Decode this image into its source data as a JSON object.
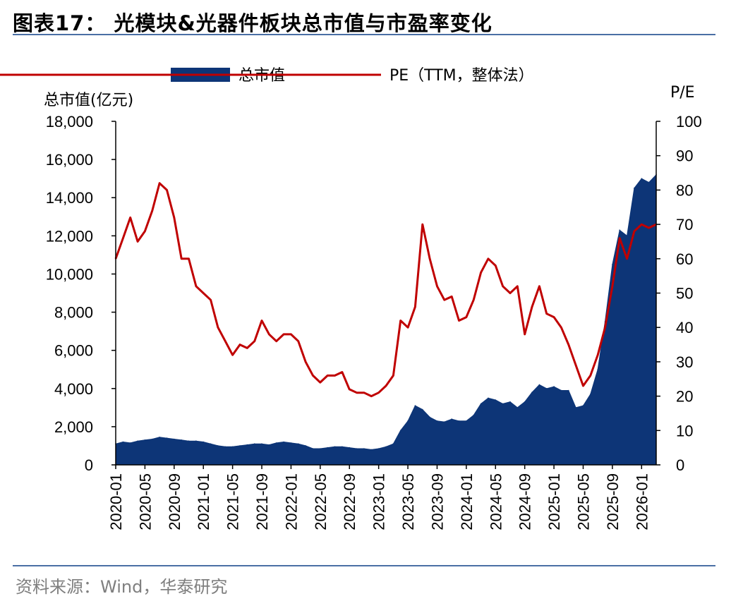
{
  "title": "图表17：  光模块&光器件板块总市值与市盈率变化",
  "source": "资料来源：Wind，华泰研究",
  "colors": {
    "area": "#0d3577",
    "line": "#c00000",
    "rule": "#4a6fa5"
  },
  "chart_data": {
    "type": "area",
    "title": "",
    "legend": {
      "placement": "top",
      "entries": [
        "总市值",
        "PE（TTM，整体法）"
      ]
    },
    "y_left": {
      "label": "总市值(亿元)",
      "range": [
        0,
        18000
      ],
      "ticks": [
        "0",
        "2,000",
        "4,000",
        "6,000",
        "8,000",
        "10,000",
        "12,000",
        "14,000",
        "16,000",
        "18,000"
      ]
    },
    "y_right": {
      "label": "P/E",
      "range": [
        0,
        100
      ],
      "ticks": [
        "0",
        "10",
        "20",
        "30",
        "40",
        "50",
        "60",
        "70",
        "80",
        "90",
        "100"
      ]
    },
    "x": {
      "range": [
        "2020-01",
        "2026-03"
      ],
      "tick_labels": [
        "2020-01",
        "2020-05",
        "2020-09",
        "2021-01",
        "2021-05",
        "2021-09",
        "2022-01",
        "2022-05",
        "2022-09",
        "2023-01",
        "2023-05",
        "2023-09",
        "2024-01",
        "2024-05",
        "2024-09",
        "2025-01",
        "2025-05",
        "2025-09",
        "2026-01"
      ]
    },
    "grid": false,
    "series": [
      {
        "name": "总市值",
        "type": "area",
        "axis": "left",
        "points": [
          [
            "2020-01",
            1100
          ],
          [
            "2020-02",
            1200
          ],
          [
            "2020-03",
            1150
          ],
          [
            "2020-04",
            1250
          ],
          [
            "2020-05",
            1300
          ],
          [
            "2020-06",
            1350
          ],
          [
            "2020-07",
            1450
          ],
          [
            "2020-08",
            1400
          ],
          [
            "2020-09",
            1350
          ],
          [
            "2020-10",
            1300
          ],
          [
            "2020-11",
            1250
          ],
          [
            "2020-12",
            1250
          ],
          [
            "2021-01",
            1200
          ],
          [
            "2021-02",
            1100
          ],
          [
            "2021-03",
            1000
          ],
          [
            "2021-04",
            950
          ],
          [
            "2021-05",
            950
          ],
          [
            "2021-06",
            1000
          ],
          [
            "2021-07",
            1050
          ],
          [
            "2021-08",
            1100
          ],
          [
            "2021-09",
            1100
          ],
          [
            "2021-10",
            1050
          ],
          [
            "2021-11",
            1150
          ],
          [
            "2021-12",
            1200
          ],
          [
            "2022-01",
            1150
          ],
          [
            "2022-02",
            1100
          ],
          [
            "2022-03",
            1000
          ],
          [
            "2022-04",
            850
          ],
          [
            "2022-05",
            850
          ],
          [
            "2022-06",
            900
          ],
          [
            "2022-07",
            950
          ],
          [
            "2022-08",
            950
          ],
          [
            "2022-09",
            900
          ],
          [
            "2022-10",
            850
          ],
          [
            "2022-11",
            850
          ],
          [
            "2022-12",
            800
          ],
          [
            "2023-01",
            850
          ],
          [
            "2023-02",
            950
          ],
          [
            "2023-03",
            1100
          ],
          [
            "2023-04",
            1800
          ],
          [
            "2023-05",
            2300
          ],
          [
            "2023-06",
            3100
          ],
          [
            "2023-07",
            2900
          ],
          [
            "2023-08",
            2500
          ],
          [
            "2023-09",
            2300
          ],
          [
            "2023-10",
            2250
          ],
          [
            "2023-11",
            2400
          ],
          [
            "2023-12",
            2300
          ],
          [
            "2024-01",
            2300
          ],
          [
            "2024-02",
            2600
          ],
          [
            "2024-03",
            3200
          ],
          [
            "2024-04",
            3500
          ],
          [
            "2024-05",
            3400
          ],
          [
            "2024-06",
            3200
          ],
          [
            "2024-07",
            3300
          ],
          [
            "2024-08",
            3000
          ],
          [
            "2024-09",
            3300
          ],
          [
            "2024-10",
            3800
          ],
          [
            "2024-11",
            4200
          ],
          [
            "2024-12",
            4000
          ],
          [
            "2025-01",
            4100
          ],
          [
            "2025-02",
            3900
          ],
          [
            "2025-03",
            3900
          ],
          [
            "2025-04",
            3000
          ],
          [
            "2025-05",
            3100
          ],
          [
            "2025-06",
            3700
          ],
          [
            "2025-07",
            5000
          ],
          [
            "2025-08",
            7500
          ],
          [
            "2025-09",
            10500
          ],
          [
            "2025-10",
            12300
          ],
          [
            "2025-11",
            12000
          ],
          [
            "2025-12",
            14500
          ],
          [
            "2026-01",
            15000
          ],
          [
            "2026-02",
            14800
          ],
          [
            "2026-03",
            15200
          ]
        ]
      },
      {
        "name": "PE（TTM，整体法）",
        "type": "line",
        "axis": "right",
        "points": [
          [
            "2020-01",
            60
          ],
          [
            "2020-02",
            66
          ],
          [
            "2020-03",
            72
          ],
          [
            "2020-04",
            65
          ],
          [
            "2020-05",
            68
          ],
          [
            "2020-06",
            74
          ],
          [
            "2020-07",
            82
          ],
          [
            "2020-08",
            80
          ],
          [
            "2020-09",
            72
          ],
          [
            "2020-10",
            60
          ],
          [
            "2020-11",
            60
          ],
          [
            "2020-12",
            52
          ],
          [
            "2021-01",
            50
          ],
          [
            "2021-02",
            48
          ],
          [
            "2021-03",
            40
          ],
          [
            "2021-04",
            36
          ],
          [
            "2021-05",
            32
          ],
          [
            "2021-06",
            35
          ],
          [
            "2021-07",
            34
          ],
          [
            "2021-08",
            36
          ],
          [
            "2021-09",
            42
          ],
          [
            "2021-10",
            38
          ],
          [
            "2021-11",
            36
          ],
          [
            "2021-12",
            38
          ],
          [
            "2022-01",
            38
          ],
          [
            "2022-02",
            36
          ],
          [
            "2022-03",
            30
          ],
          [
            "2022-04",
            26
          ],
          [
            "2022-05",
            24
          ],
          [
            "2022-06",
            26
          ],
          [
            "2022-07",
            26
          ],
          [
            "2022-08",
            27
          ],
          [
            "2022-09",
            22
          ],
          [
            "2022-10",
            21
          ],
          [
            "2022-11",
            21
          ],
          [
            "2022-12",
            20
          ],
          [
            "2023-01",
            21
          ],
          [
            "2023-02",
            23
          ],
          [
            "2023-03",
            26
          ],
          [
            "2023-04",
            42
          ],
          [
            "2023-05",
            40
          ],
          [
            "2023-06",
            46
          ],
          [
            "2023-07",
            70
          ],
          [
            "2023-08",
            60
          ],
          [
            "2023-09",
            52
          ],
          [
            "2023-10",
            48
          ],
          [
            "2023-11",
            49
          ],
          [
            "2023-12",
            42
          ],
          [
            "2024-01",
            43
          ],
          [
            "2024-02",
            48
          ],
          [
            "2024-03",
            56
          ],
          [
            "2024-04",
            60
          ],
          [
            "2024-05",
            58
          ],
          [
            "2024-06",
            52
          ],
          [
            "2024-07",
            50
          ],
          [
            "2024-08",
            52
          ],
          [
            "2024-09",
            38
          ],
          [
            "2024-10",
            46
          ],
          [
            "2024-11",
            52
          ],
          [
            "2024-12",
            44
          ],
          [
            "2025-01",
            43
          ],
          [
            "2025-02",
            40
          ],
          [
            "2025-03",
            35
          ],
          [
            "2025-04",
            29
          ],
          [
            "2025-05",
            23
          ],
          [
            "2025-06",
            26
          ],
          [
            "2025-07",
            32
          ],
          [
            "2025-08",
            40
          ],
          [
            "2025-09",
            52
          ],
          [
            "2025-10",
            66
          ],
          [
            "2025-11",
            60
          ],
          [
            "2025-12",
            68
          ],
          [
            "2026-01",
            70
          ],
          [
            "2026-02",
            69
          ],
          [
            "2026-03",
            70
          ]
        ]
      }
    ]
  }
}
